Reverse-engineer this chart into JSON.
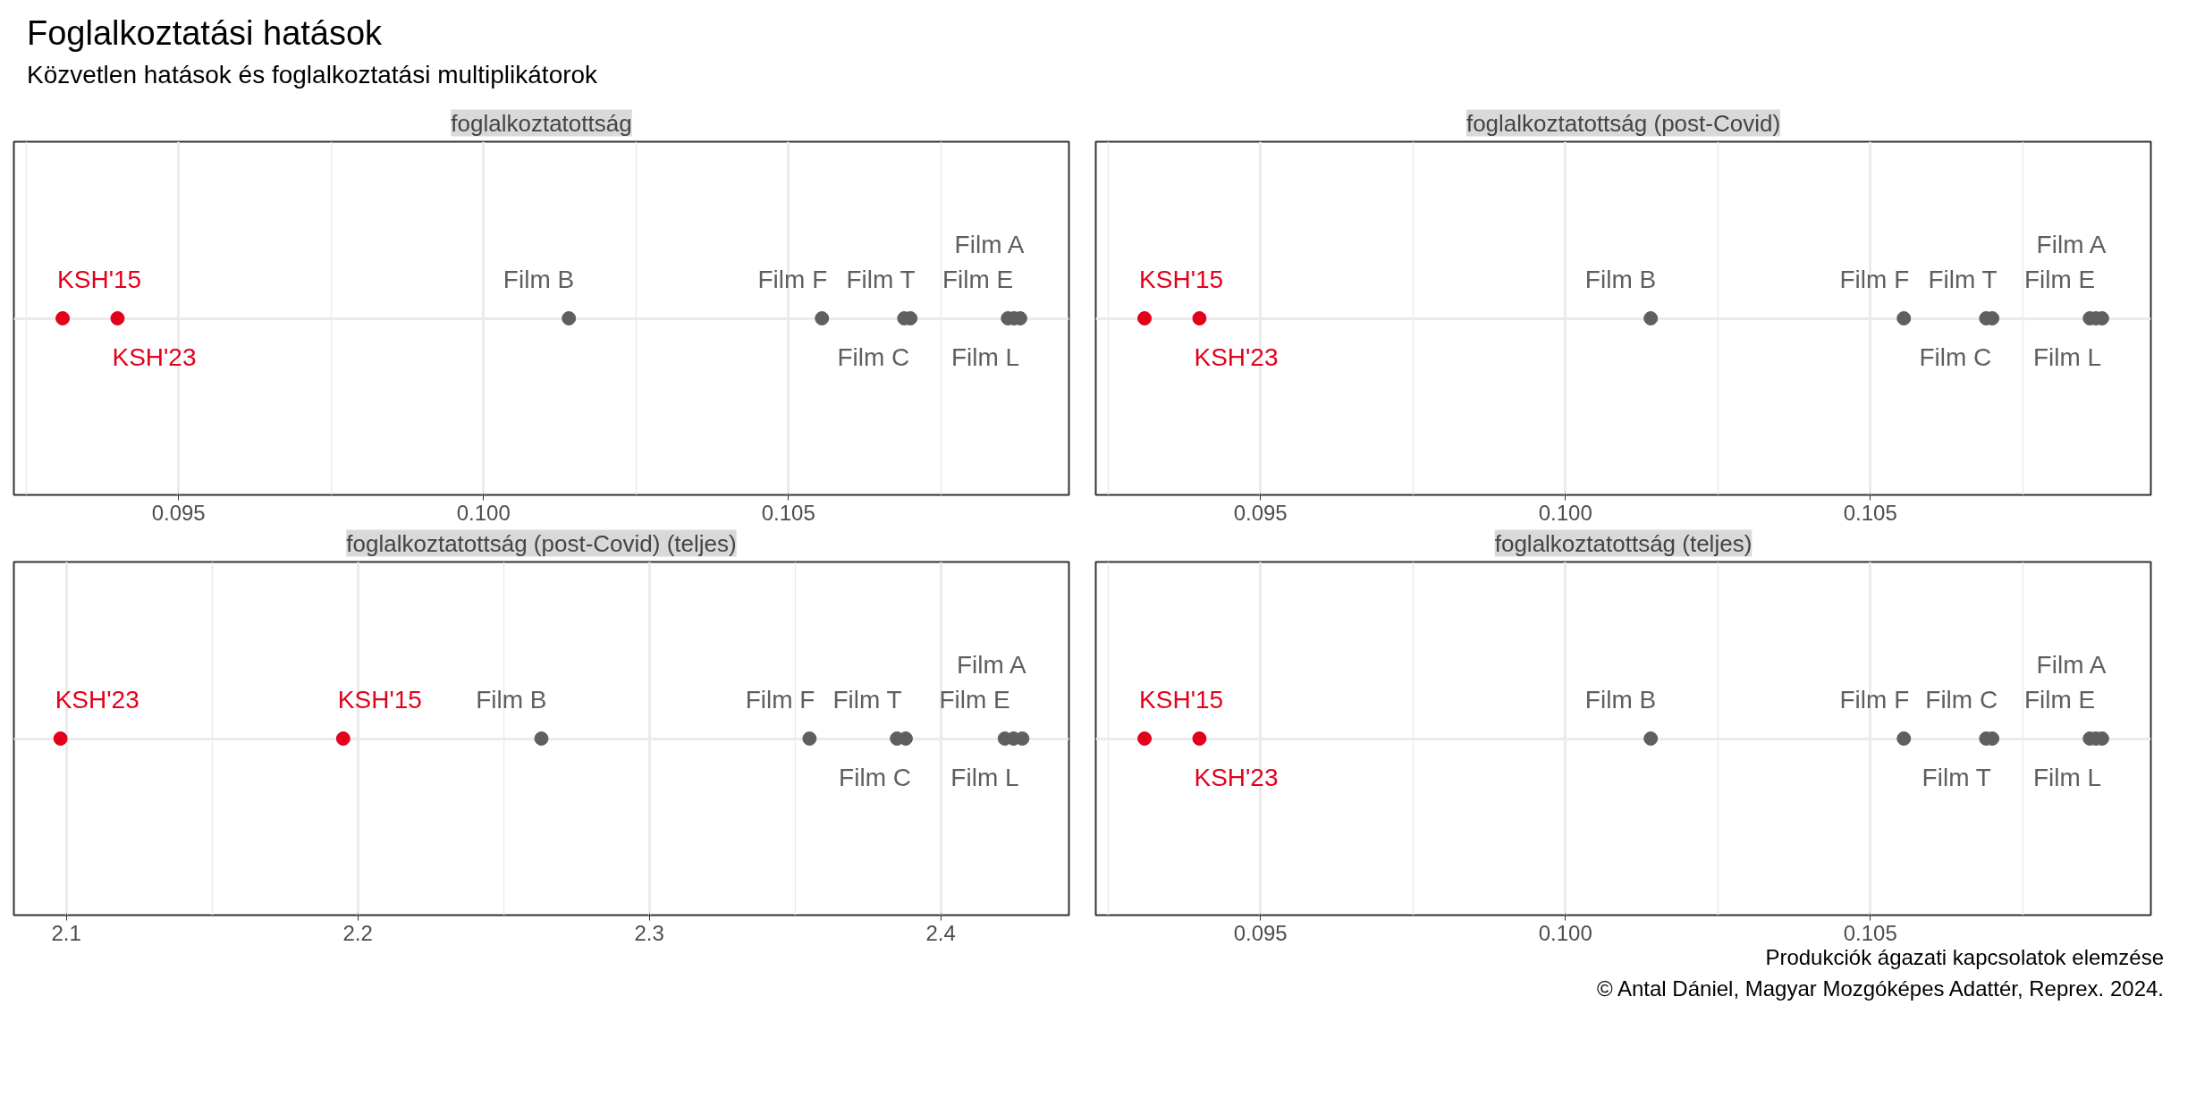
{
  "chart_data": [
    {
      "type": "scatter",
      "orientation": "horizontal",
      "title": "foglalkoztatottság",
      "categories": [
        null
      ],
      "xlim": [
        0.0923,
        0.1096
      ],
      "xticks": [
        {
          "value": 0.0925,
          "label": null
        },
        {
          "value": 0.095,
          "label": "0.095"
        },
        {
          "value": 0.0975,
          "label": null
        },
        {
          "value": 0.1,
          "label": "0.100"
        },
        {
          "value": 0.1025,
          "label": null
        },
        {
          "value": 0.105,
          "label": "0.105"
        },
        {
          "value": 0.1075,
          "label": null
        }
      ],
      "grid": true,
      "marker": "circle",
      "series": [
        {
          "name": "KSH'15",
          "color": "#e3001b",
          "values": [
            0.0931
          ]
        },
        {
          "name": "KSH'23",
          "color": "#e3001b",
          "values": [
            0.094
          ]
        },
        {
          "name": "Film B",
          "color": "#5f5f5f",
          "values": [
            0.1014
          ]
        },
        {
          "name": "Film F",
          "color": "#5f5f5f",
          "values": [
            0.10555
          ]
        },
        {
          "name": "Film C",
          "color": "#5f5f5f",
          "values": [
            0.1069
          ]
        },
        {
          "name": "Film T",
          "color": "#5f5f5f",
          "values": [
            0.107
          ]
        },
        {
          "name": "Film E",
          "color": "#5f5f5f",
          "values": [
            0.1086
          ]
        },
        {
          "name": "Film L",
          "color": "#5f5f5f",
          "values": [
            0.1087
          ]
        },
        {
          "name": "Film A",
          "color": "#5f5f5f",
          "values": [
            0.1088
          ]
        }
      ]
    },
    {
      "type": "scatter",
      "orientation": "horizontal",
      "title": "foglalkoztatottság (post-Covid)",
      "categories": [
        null
      ],
      "xlim": [
        0.0923,
        0.1096
      ],
      "xticks": [
        {
          "value": 0.0925,
          "label": null
        },
        {
          "value": 0.095,
          "label": "0.095"
        },
        {
          "value": 0.0975,
          "label": null
        },
        {
          "value": 0.1,
          "label": "0.100"
        },
        {
          "value": 0.1025,
          "label": null
        },
        {
          "value": 0.105,
          "label": "0.105"
        },
        {
          "value": 0.1075,
          "label": null
        }
      ],
      "grid": true,
      "marker": "circle",
      "series": [
        {
          "name": "KSH'15",
          "color": "#e3001b",
          "values": [
            0.0931
          ]
        },
        {
          "name": "KSH'23",
          "color": "#e3001b",
          "values": [
            0.094
          ]
        },
        {
          "name": "Film B",
          "color": "#5f5f5f",
          "values": [
            0.1014
          ]
        },
        {
          "name": "Film F",
          "color": "#5f5f5f",
          "values": [
            0.10555
          ]
        },
        {
          "name": "Film C",
          "color": "#5f5f5f",
          "values": [
            0.1069
          ]
        },
        {
          "name": "Film T",
          "color": "#5f5f5f",
          "values": [
            0.107
          ]
        },
        {
          "name": "Film E",
          "color": "#5f5f5f",
          "values": [
            0.1086
          ]
        },
        {
          "name": "Film L",
          "color": "#5f5f5f",
          "values": [
            0.1087
          ]
        },
        {
          "name": "Film A",
          "color": "#5f5f5f",
          "values": [
            0.1088
          ]
        }
      ]
    },
    {
      "type": "scatter",
      "orientation": "horizontal",
      "title": "foglalkoztatottság (post-Covid) (teljes)",
      "categories": [
        null
      ],
      "xlim": [
        2.082,
        2.444
      ],
      "xticks": [
        {
          "value": 2.1,
          "label": "2.1"
        },
        {
          "value": 2.15,
          "label": null
        },
        {
          "value": 2.2,
          "label": "2.2"
        },
        {
          "value": 2.25,
          "label": null
        },
        {
          "value": 2.3,
          "label": "2.3"
        },
        {
          "value": 2.35,
          "label": null
        },
        {
          "value": 2.4,
          "label": "2.4"
        }
      ],
      "grid": true,
      "marker": "circle",
      "series": [
        {
          "name": "KSH'23",
          "color": "#e3001b",
          "values": [
            2.098
          ]
        },
        {
          "name": "KSH'15",
          "color": "#e3001b",
          "values": [
            2.195
          ]
        },
        {
          "name": "Film B",
          "color": "#5f5f5f",
          "values": [
            2.263
          ]
        },
        {
          "name": "Film F",
          "color": "#5f5f5f",
          "values": [
            2.355
          ]
        },
        {
          "name": "Film T",
          "color": "#5f5f5f",
          "values": [
            2.385
          ]
        },
        {
          "name": "Film C",
          "color": "#5f5f5f",
          "values": [
            2.388
          ]
        },
        {
          "name": "Film E",
          "color": "#5f5f5f",
          "values": [
            2.422
          ]
        },
        {
          "name": "Film L",
          "color": "#5f5f5f",
          "values": [
            2.425
          ]
        },
        {
          "name": "Film A",
          "color": "#5f5f5f",
          "values": [
            2.428
          ]
        }
      ]
    },
    {
      "type": "scatter",
      "orientation": "horizontal",
      "title": "foglalkoztatottság (teljes)",
      "categories": [
        null
      ],
      "xlim": [
        0.0923,
        0.1096
      ],
      "xticks": [
        {
          "value": 0.0925,
          "label": null
        },
        {
          "value": 0.095,
          "label": "0.095"
        },
        {
          "value": 0.0975,
          "label": null
        },
        {
          "value": 0.1,
          "label": "0.100"
        },
        {
          "value": 0.1025,
          "label": null
        },
        {
          "value": 0.105,
          "label": "0.105"
        },
        {
          "value": 0.1075,
          "label": null
        }
      ],
      "grid": true,
      "marker": "circle",
      "series": [
        {
          "name": "KSH'15",
          "color": "#e3001b",
          "values": [
            0.0931
          ]
        },
        {
          "name": "KSH'23",
          "color": "#e3001b",
          "values": [
            0.094
          ]
        },
        {
          "name": "Film B",
          "color": "#5f5f5f",
          "values": [
            0.1014
          ]
        },
        {
          "name": "Film F",
          "color": "#5f5f5f",
          "values": [
            0.10555
          ]
        },
        {
          "name": "Film T",
          "color": "#5f5f5f",
          "values": [
            0.1069
          ]
        },
        {
          "name": "Film C",
          "color": "#5f5f5f",
          "values": [
            0.107
          ]
        },
        {
          "name": "Film E",
          "color": "#5f5f5f",
          "values": [
            0.1086
          ]
        },
        {
          "name": "Film L",
          "color": "#5f5f5f",
          "values": [
            0.1087
          ]
        },
        {
          "name": "Film A",
          "color": "#5f5f5f",
          "values": [
            0.1088
          ]
        }
      ]
    },
    {
      "type": "other",
      "title": "Foglalkoztatási hatások",
      "subtitle": "Közvetlen hatások és foglalkoztatási multiplikátorok",
      "annotations": [
        "Produkciók ágazati kapcsolatok elemzése",
        "© Antal Dániel, Magyar Mozgóképes Adattér, Reprex. 2024."
      ]
    }
  ]
}
